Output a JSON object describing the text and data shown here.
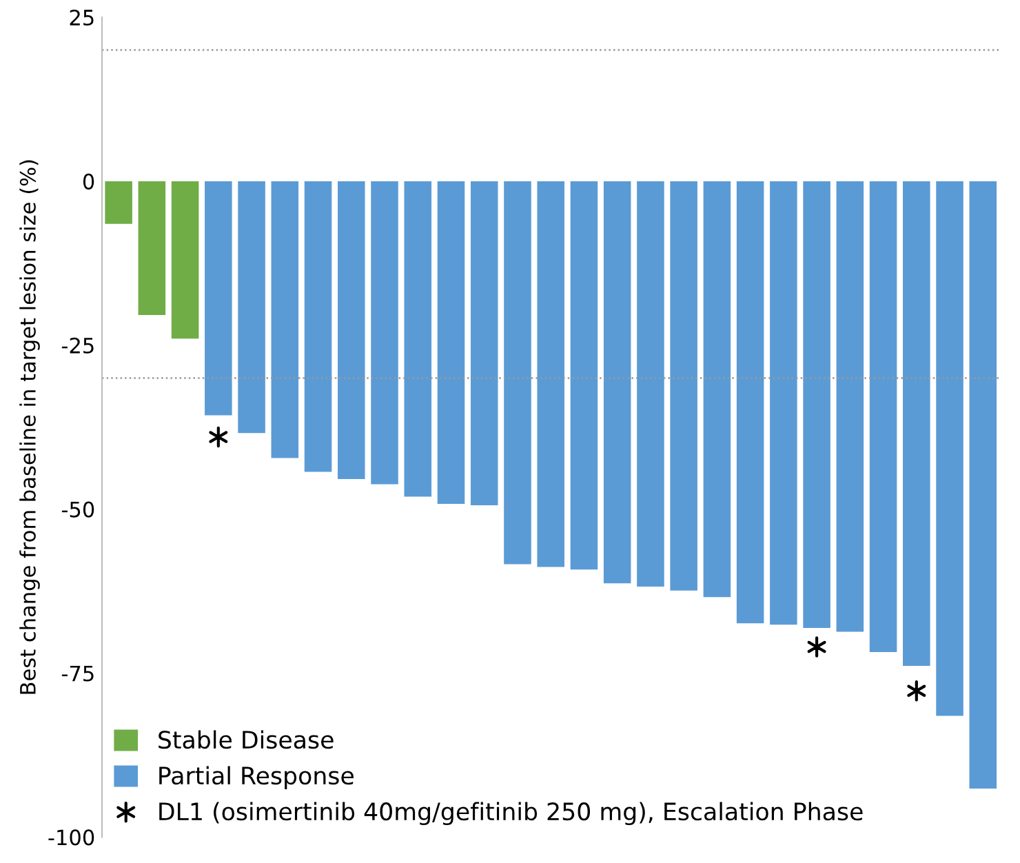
{
  "chart_data": {
    "type": "bar",
    "ylabel": "Best change from baseline in target lesion size (%)",
    "categories": [
      null,
      null,
      null,
      null,
      null,
      null,
      null,
      null,
      null,
      null,
      null,
      null,
      null,
      null,
      null,
      null,
      null,
      null,
      null,
      null,
      null,
      null,
      null,
      null,
      null,
      null,
      null
    ],
    "series": [
      {
        "name": "Stable Disease",
        "color": "#70ad47",
        "values": [
          -6.5,
          -20.4,
          -24,
          null,
          null,
          null,
          null,
          null,
          null,
          null,
          null,
          null,
          null,
          null,
          null,
          null,
          null,
          null,
          null,
          null,
          null,
          null,
          null,
          null,
          null,
          null,
          null
        ]
      },
      {
        "name": "Partial Response",
        "color": "#5b9bd5",
        "values": [
          null,
          null,
          null,
          -35.7,
          -38.4,
          -42.2,
          -44.3,
          -45.4,
          -46.2,
          -48.1,
          -49.2,
          -49.4,
          -58.4,
          -58.8,
          -59.2,
          -61.3,
          -61.8,
          -62.4,
          -63.4,
          -67.4,
          -67.6,
          -68.1,
          -68.7,
          -71.8,
          -73.9,
          -81.5,
          -92.6
        ]
      },
      {
        "name": "DL1 (osimertinib 40mg/gefitinib 250 mg), Escalation Phase",
        "type": "scatter",
        "marker": "cross",
        "color": "#000000",
        "values": [
          null,
          null,
          null,
          -39,
          null,
          null,
          null,
          null,
          null,
          null,
          null,
          null,
          null,
          null,
          null,
          null,
          null,
          null,
          null,
          null,
          null,
          -71,
          null,
          null,
          -77.7,
          null,
          null
        ]
      }
    ],
    "ylim": [
      -100,
      25
    ],
    "yticks": [
      -100,
      -75,
      -50,
      -25,
      0,
      25
    ],
    "ref_lines": [
      {
        "axis": "y",
        "value": 20,
        "color": "#999999",
        "line_style": "dotted"
      },
      {
        "axis": "y",
        "value": -30,
        "color": "#999999",
        "line_style": "dotted"
      }
    ],
    "legend": "bottom left",
    "grid": false
  }
}
